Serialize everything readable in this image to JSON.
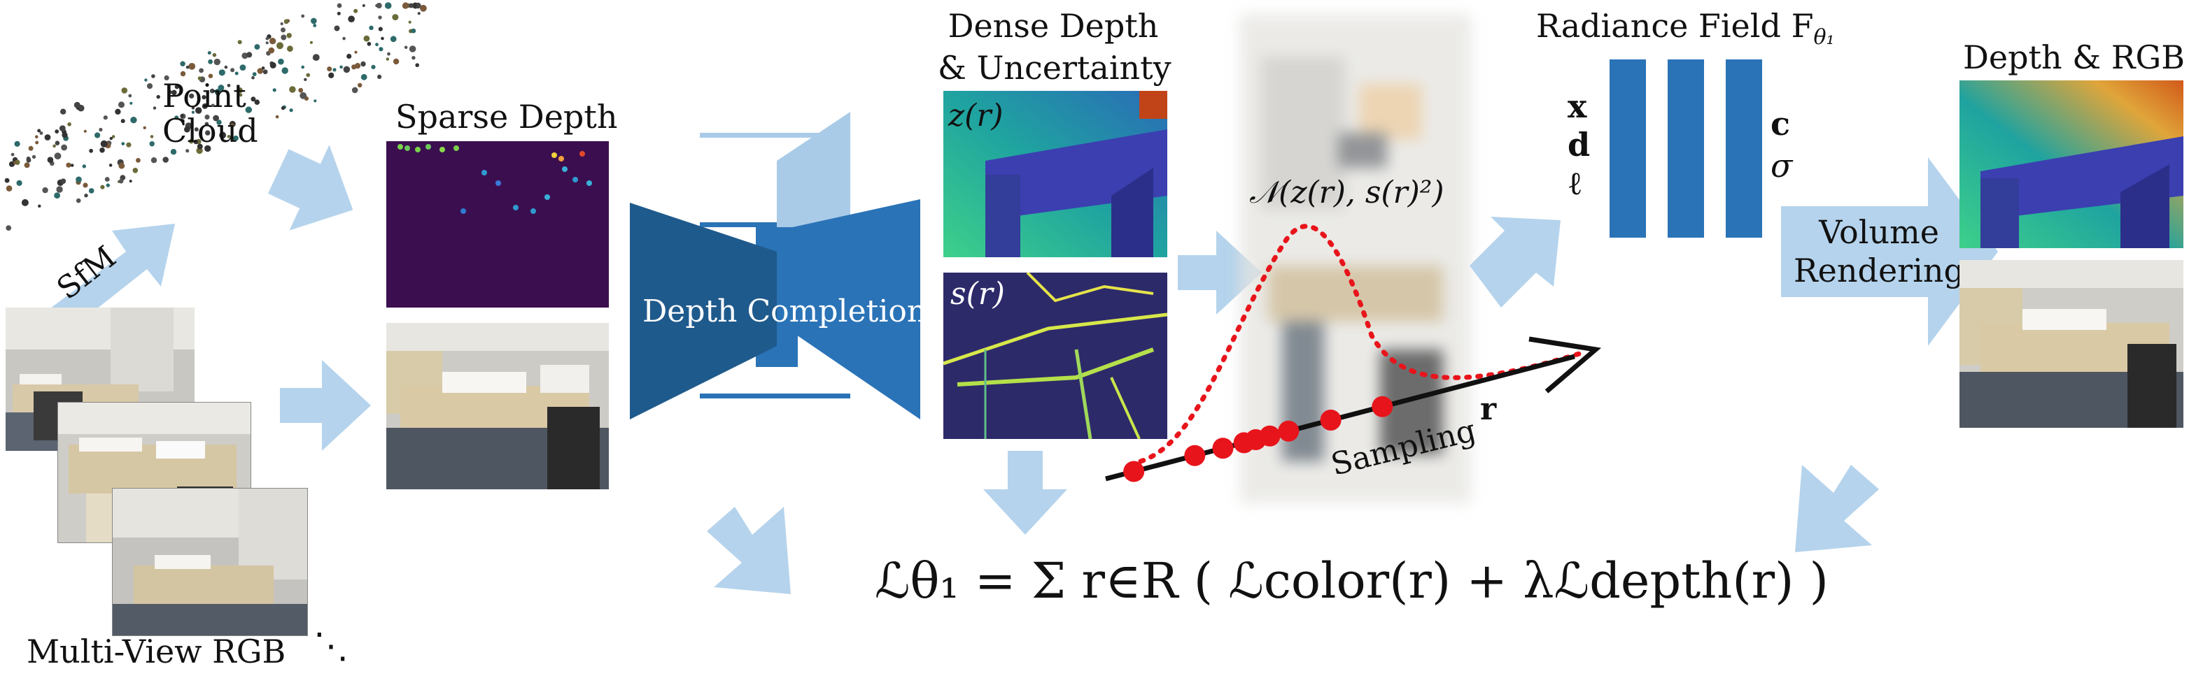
{
  "labels": {
    "point_cloud_l1": "Point",
    "point_cloud_l2": "Cloud",
    "sfm": "SfM",
    "multi_view_rgb": "Multi-View RGB",
    "dots": "⋱",
    "sparse_depth": "Sparse Depth",
    "depth_completion": "Depth Completion",
    "dense_depth_l1": "Dense Depth",
    "dense_depth_l2": "& Uncertainty",
    "z_r": "z(r)",
    "s_r": "s(r)",
    "normal_dist": "𝒩(z(r), s(r)²)",
    "sampling": "Sampling",
    "ray_r": "r",
    "radiance_field": "Radiance Field F",
    "radiance_field_sub": "θ₁",
    "input_x": "x",
    "input_d": "d",
    "input_l": "ℓ",
    "output_c": "c",
    "output_sigma": "σ",
    "volume_rendering_l1": "Volume",
    "volume_rendering_l2": "Rendering",
    "depth_rgb": "Depth & RGB",
    "loss_formula": "ℒθ₁ = Σ r∈R ( ℒcolor(r) + λℒdepth(r) )"
  },
  "colors": {
    "arrow_light_blue": "#b5d3ec",
    "network_dark": "#1f5a8c",
    "network_mid": "#2a73b7",
    "network_light": "#a9cbe8",
    "mlp_blue": "#2a73b7",
    "sample_red": "#e8141b",
    "sparse_bg": "#3b0f4f"
  },
  "icons": [
    "point-cloud",
    "rgb-photo",
    "depth-map",
    "uncertainty-map",
    "gaussian-curve",
    "ray-arrow",
    "mlp-bars"
  ]
}
